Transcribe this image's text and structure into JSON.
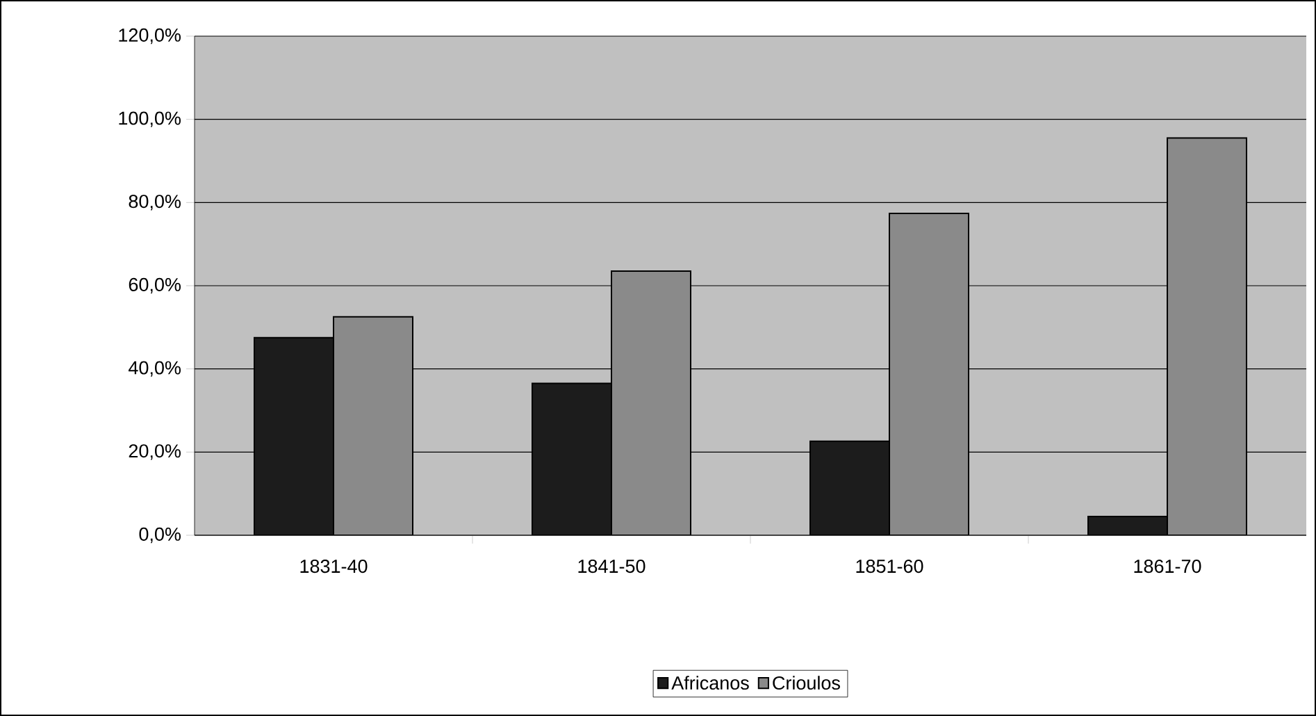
{
  "chart_data": {
    "type": "bar",
    "categories": [
      "1831-40",
      "1841-50",
      "1851-60",
      "1861-70"
    ],
    "series": [
      {
        "name": "Africanos",
        "color": "#1c1c1c",
        "values": [
          47.5,
          36.5,
          22.6,
          4.5
        ]
      },
      {
        "name": "Crioulos",
        "color": "#8a8a8a",
        "values": [
          52.5,
          63.5,
          77.4,
          95.5
        ]
      }
    ],
    "ylim": [
      0,
      120
    ],
    "yticks": [
      {
        "value": 0,
        "label": "0,0%"
      },
      {
        "value": 20,
        "label": "20,0%"
      },
      {
        "value": 40,
        "label": "40,0%"
      },
      {
        "value": 60,
        "label": "60,0%"
      },
      {
        "value": 80,
        "label": "80,0%"
      },
      {
        "value": 100,
        "label": "100,0%"
      },
      {
        "value": 120,
        "label": "120,0%"
      }
    ],
    "grid": "y",
    "legend": "bottom"
  }
}
